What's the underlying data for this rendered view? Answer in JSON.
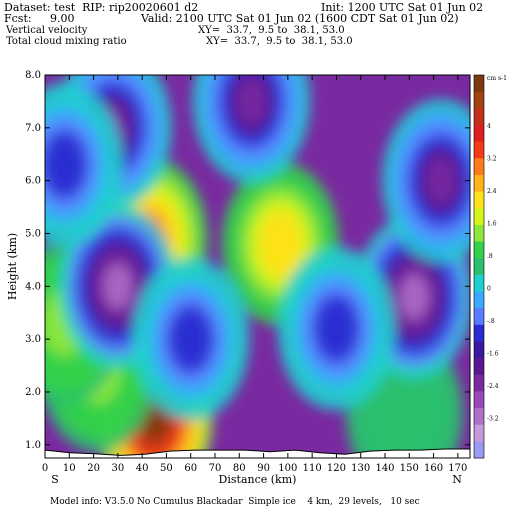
{
  "header": {
    "dataset": "Dataset: test  RIP: rip20020601 d2",
    "init": "Init: 1200 UTC Sat 01 Jun 02",
    "fcst_label": "Fcst:",
    "fcst_value": "9.00",
    "valid": "Valid: 2100 UTC Sat 01 Jun 02 (1600 CDT Sat 01 Jun 02)",
    "field1": "Vertical velocity",
    "xy1": "XY=  33.7,  9.5 to  38.1, 53.0",
    "field2": "Total cloud mixing ratio",
    "xy2": "XY=  33.7,  9.5 to  38.1, 53.0"
  },
  "footer": "Model info: V3.5.0 No Cumulus Blackadar  Simple ice    4 km,  29 levels,   10 sec",
  "chart_data": {
    "type": "heatmap",
    "xlabel": "Distance (km)",
    "ylabel": "Height (km)",
    "x_ticks": [
      "0",
      "10",
      "20",
      "30",
      "40",
      "50",
      "60",
      "70",
      "80",
      "90",
      "100",
      "110",
      "120",
      "130",
      "140",
      "150",
      "160",
      "170"
    ],
    "y_ticks": [
      "1.0",
      "2.0",
      "3.0",
      "4.0",
      "5.0",
      "6.0",
      "7.0",
      "8.0"
    ],
    "xlim": [
      0,
      175
    ],
    "ylim": [
      0.75,
      8.0
    ],
    "left_end_label": "S",
    "right_end_label": "N",
    "colorbar": {
      "unit": "cm s-1",
      "labels": [
        "4",
        "3.2",
        "2.4",
        "1.6",
        ".8",
        "0",
        "-.8",
        "-1.6",
        "-2.4",
        "-3.2"
      ],
      "colors": [
        "#7a3a10",
        "#a04412",
        "#c0301a",
        "#dd1f1f",
        "#f23a1b",
        "#ff7a1a",
        "#ffb21a",
        "#ffe21a",
        "#d8f51a",
        "#8ee63c",
        "#34d24a",
        "#2cc06e",
        "#20cfd0",
        "#3aa8ff",
        "#5a7aff",
        "#2b2bd0",
        "#3a18a0",
        "#5a1890",
        "#7a2aa0",
        "#9a4ab8",
        "#b070c8",
        "#c69adb",
        "#9a9af0"
      ]
    },
    "terrain_height_km": [
      0.9,
      0.85,
      0.83,
      0.8,
      0.82,
      0.88,
      0.9,
      0.9,
      0.9,
      0.87,
      0.9,
      0.85,
      0.82,
      0.88,
      0.9,
      0.9,
      0.92,
      0.92
    ],
    "features": [
      {
        "x": 45,
        "y": 1.5,
        "value": 4.0
      },
      {
        "x": 43,
        "y": 4.9,
        "value": 2.4
      },
      {
        "x": 97,
        "y": 4.8,
        "value": 1.6
      },
      {
        "x": 22,
        "y": 2.4,
        "value": 0.8
      },
      {
        "x": 8,
        "y": 3.3,
        "value": 0.8
      },
      {
        "x": 148,
        "y": 1.6,
        "value": 0.0
      },
      {
        "x": 30,
        "y": 4.0,
        "value": -3.2
      },
      {
        "x": 152,
        "y": 3.8,
        "value": -3.2
      },
      {
        "x": 85,
        "y": 7.5,
        "value": -2.4
      },
      {
        "x": 163,
        "y": 6.0,
        "value": -2.4
      },
      {
        "x": 60,
        "y": 3.0,
        "value": -1.6
      },
      {
        "x": 120,
        "y": 3.2,
        "value": -1.6
      },
      {
        "x": 28,
        "y": 7.0,
        "value": -2.4
      },
      {
        "x": 8,
        "y": 6.3,
        "value": -1.6
      }
    ]
  }
}
